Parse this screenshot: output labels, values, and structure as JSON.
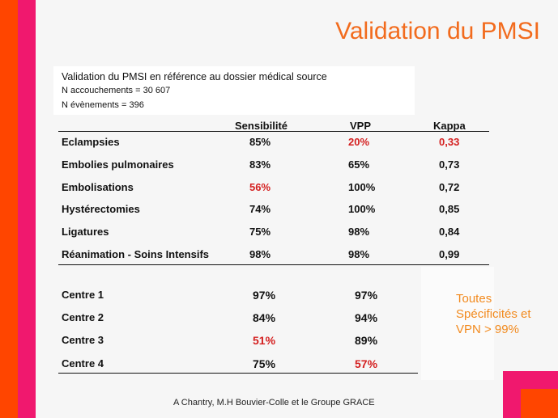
{
  "title": "Validation du PMSI",
  "header": {
    "line1": "Validation du PMSI en référence au dossier médical source",
    "line2": "N accouchements = 30 607",
    "line3": "N évènements = 396"
  },
  "columns": [
    "Sensibilité",
    "VPP",
    "Kappa"
  ],
  "events": [
    {
      "label": "Eclampsies",
      "sens": "85%",
      "vpp": "20%",
      "kappa": "0,33"
    },
    {
      "label": "Embolies pulmonaires",
      "sens": "83%",
      "vpp": "65%",
      "kappa": "0,73"
    },
    {
      "label": "Embolisations",
      "sens": "56%",
      "vpp": "100%",
      "kappa": "0,72"
    },
    {
      "label": "Hystérectomies",
      "sens": "74%",
      "vpp": "100%",
      "kappa": "0,85"
    },
    {
      "label": "Ligatures",
      "sens": "75%",
      "vpp": "98%",
      "kappa": "0,84"
    },
    {
      "label": "Réanimation - Soins Intensifs",
      "sens": "98%",
      "vpp": "98%",
      "kappa": "0,99"
    }
  ],
  "centres": [
    {
      "label": "Centre 1",
      "sens": "97%",
      "vpp": "97%"
    },
    {
      "label": "Centre 2",
      "sens": "84%",
      "vpp": "94%"
    },
    {
      "label": "Centre 3",
      "sens": "51%",
      "vpp": "89%"
    },
    {
      "label": "Centre 4",
      "sens": "75%",
      "vpp": "57%"
    }
  ],
  "note": "Toutes Spécificités et VPN > 99%",
  "footer": "A Chantry, M.H Bouvier-Colle et le Groupe GRACE",
  "colors": {
    "accent_orange": "#f26b1d",
    "highlight_red": "#d42020",
    "bar_orange": "#ff4500",
    "bar_pink": "#f0186e"
  }
}
